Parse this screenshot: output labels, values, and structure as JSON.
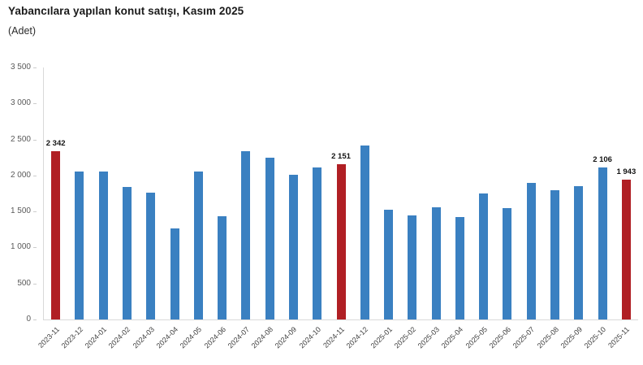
{
  "header": {
    "title": "Yabancılara yapılan konut satışı, Kasım 2025",
    "unit": "(Adet)"
  },
  "chart_data": {
    "type": "bar",
    "title": "Yabancılara yapılan konut satışı, Kasım 2025",
    "ylabel": "(Adet)",
    "xlabel": "",
    "ylim": [
      0,
      3500
    ],
    "ytick_step": 500,
    "ytick_labels": [
      "0",
      "500",
      "1 000",
      "1 500",
      "2 000",
      "2 500",
      "3 000",
      "3 500"
    ],
    "grid": false,
    "legend": "none",
    "categories": [
      "2023-11",
      "2023-12",
      "2024-01",
      "2024-02",
      "2024-03",
      "2024-04",
      "2024-05",
      "2024-06",
      "2024-07",
      "2024-08",
      "2024-09",
      "2024-10",
      "2024-11",
      "2024-12",
      "2025-01",
      "2025-02",
      "2025-03",
      "2025-04",
      "2025-05",
      "2025-06",
      "2025-07",
      "2025-08",
      "2025-09",
      "2025-10",
      "2025-11"
    ],
    "values": [
      2342,
      2055,
      2055,
      1840,
      1765,
      1265,
      2050,
      1430,
      2340,
      2250,
      2010,
      2110,
      2151,
      2415,
      1530,
      1445,
      1560,
      1425,
      1755,
      1550,
      1900,
      1800,
      1855,
      2106,
      1943
    ],
    "highlighted_categories": [
      "2023-11",
      "2024-11",
      "2025-11"
    ],
    "data_labels": {
      "2023-11": "2 342",
      "2024-11": "2 151",
      "2025-10": "2 106",
      "2025-11": "1 943"
    },
    "colors": {
      "bar": "#3a80c1",
      "highlight": "#b01f24",
      "axis_line": "#d9d9d9",
      "ytick_label": "#595959",
      "xtick_label": "#404040",
      "data_label": "#141414"
    }
  }
}
